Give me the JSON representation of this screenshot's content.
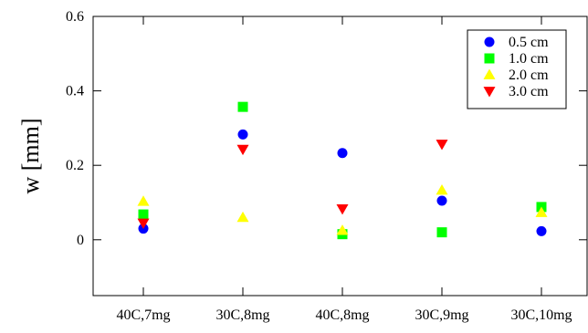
{
  "chart_data": {
    "type": "scatter",
    "title": "",
    "xlabel": "",
    "ylabel": "w  [mm]",
    "categories": [
      "40C,7mg",
      "30C,8mg",
      "40C,8mg",
      "30C,9mg",
      "30C,10mg"
    ],
    "ylim": [
      -0.15,
      0.6
    ],
    "yticks": [
      0,
      0.2,
      0.4,
      0.6
    ],
    "grid": false,
    "legend_position": "top-right",
    "series": [
      {
        "name": "0.5 cm",
        "marker": "circle",
        "color": "#0000ff",
        "values": [
          0.03,
          0.283,
          0.233,
          0.105,
          0.023
        ]
      },
      {
        "name": "1.0 cm",
        "marker": "square",
        "color": "#00ff00",
        "values": [
          0.068,
          0.357,
          0.015,
          0.02,
          0.088
        ]
      },
      {
        "name": "2.0 cm",
        "marker": "triangle-up",
        "color": "#ffff00",
        "values": [
          0.103,
          0.06,
          0.025,
          0.133,
          0.073
        ]
      },
      {
        "name": "3.0 cm",
        "marker": "triangle-down",
        "color": "#ff0000",
        "values": [
          0.045,
          0.243,
          0.083,
          0.257,
          null
        ]
      }
    ]
  }
}
